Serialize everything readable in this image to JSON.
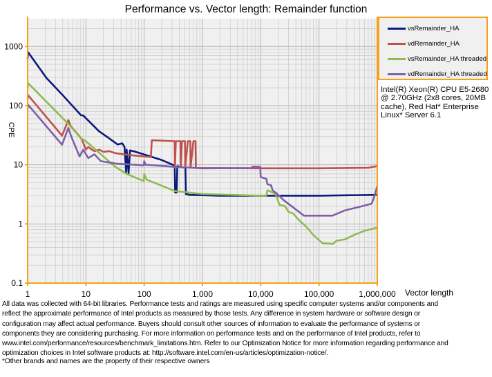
{
  "chart_data": {
    "type": "line",
    "title": "Performance vs. Vector length: Remainder function",
    "xlabel": "Vector length",
    "ylabel": "CPE",
    "xscale": "log",
    "yscale": "log",
    "xlim": [
      1,
      1000000
    ],
    "ylim": [
      0.1,
      2950
    ],
    "grid": true,
    "legend_position": "top-right",
    "x_ticks": [
      1,
      10,
      100,
      1000,
      10000,
      100000,
      1000000
    ],
    "x_tick_labels": [
      "1",
      "10",
      "100",
      "1,000",
      "10,000",
      "100,000",
      "1,000,000"
    ],
    "y_ticks": [
      0.1,
      1,
      10,
      100,
      1000
    ],
    "y_tick_labels": [
      "0.1",
      "1",
      "10",
      "100",
      "1000"
    ],
    "series": [
      {
        "name": "vsRemainder_HA",
        "color": "#0a1a7a",
        "points": [
          [
            1,
            620
          ],
          [
            1.02,
            800
          ],
          [
            2.1,
            293
          ],
          [
            4,
            150
          ],
          [
            8.2,
            69
          ],
          [
            9,
            68
          ],
          [
            16.7,
            37
          ],
          [
            25,
            28
          ],
          [
            35,
            22
          ],
          [
            42,
            23
          ],
          [
            46,
            20
          ],
          [
            49,
            7.4
          ],
          [
            50,
            18
          ],
          [
            54,
            7.2
          ],
          [
            57,
            17.5
          ],
          [
            65,
            17
          ],
          [
            98,
            15
          ],
          [
            200,
            12
          ],
          [
            334,
            9.7
          ],
          [
            340,
            3.4
          ],
          [
            360,
            3.4
          ],
          [
            370,
            9.5
          ],
          [
            450,
            9
          ],
          [
            510,
            9
          ],
          [
            520,
            3.2
          ],
          [
            600,
            3.1
          ],
          [
            2000,
            3.0
          ],
          [
            10000,
            3.0
          ],
          [
            100000,
            3.0
          ],
          [
            1000000,
            3.1
          ]
        ]
      },
      {
        "name": "vdRemainder_HA",
        "color": "#c0504d",
        "points": [
          [
            1,
            130
          ],
          [
            1.02,
            150
          ],
          [
            3.9,
            31
          ],
          [
            5,
            57
          ],
          [
            5.5,
            45
          ],
          [
            7.4,
            32
          ],
          [
            8.5,
            27
          ],
          [
            10,
            18
          ],
          [
            11,
            20
          ],
          [
            12.7,
            18
          ],
          [
            14,
            17
          ],
          [
            17,
            18
          ],
          [
            20,
            16.5
          ],
          [
            25,
            17
          ],
          [
            32,
            15.7
          ],
          [
            60,
            14.5
          ],
          [
            130,
            13.5
          ],
          [
            135,
            26
          ],
          [
            334,
            25
          ],
          [
            336,
            9
          ],
          [
            350,
            25
          ],
          [
            420,
            25
          ],
          [
            425,
            9
          ],
          [
            445,
            25
          ],
          [
            500,
            25
          ],
          [
            505,
            9
          ],
          [
            560,
            25
          ],
          [
            620,
            25
          ],
          [
            625,
            9
          ],
          [
            700,
            25
          ],
          [
            760,
            25
          ],
          [
            770,
            8.8
          ],
          [
            2000,
            8.8
          ],
          [
            10000,
            8.7
          ],
          [
            100000,
            8.7
          ],
          [
            700000,
            8.9
          ],
          [
            1000000,
            9.5
          ]
        ]
      },
      {
        "name": "vsRemainder_HA threaded",
        "color": "#8dbb4f",
        "points": [
          [
            1,
            200
          ],
          [
            1.02,
            240
          ],
          [
            5.1,
            48
          ],
          [
            8.2,
            28
          ],
          [
            10,
            25
          ],
          [
            32,
            9.2
          ],
          [
            50,
            7
          ],
          [
            99,
            5.3
          ],
          [
            100,
            7
          ],
          [
            110,
            5.6
          ],
          [
            335,
            3.6
          ],
          [
            1000,
            3.2
          ],
          [
            10000,
            3.0
          ],
          [
            12500,
            3.0
          ],
          [
            13000,
            3.7
          ],
          [
            14000,
            3.6
          ],
          [
            18000,
            3.2
          ],
          [
            21000,
            2.1
          ],
          [
            26000,
            2.0
          ],
          [
            30000,
            1.6
          ],
          [
            36000,
            1.5
          ],
          [
            46000,
            1.14
          ],
          [
            60000,
            0.9
          ],
          [
            80000,
            0.65
          ],
          [
            115000,
            0.47
          ],
          [
            174000,
            0.46
          ],
          [
            200000,
            0.52
          ],
          [
            280000,
            0.55
          ],
          [
            400000,
            0.65
          ],
          [
            590000,
            0.76
          ],
          [
            1000000,
            0.87
          ]
        ]
      },
      {
        "name": "vdRemainder_HA threaded",
        "color": "#7f5fa8",
        "points": [
          [
            1,
            90
          ],
          [
            1.02,
            103
          ],
          [
            3.9,
            21.8
          ],
          [
            5,
            42
          ],
          [
            5.6,
            30
          ],
          [
            7.8,
            13.8
          ],
          [
            9,
            18
          ],
          [
            11,
            13
          ],
          [
            14,
            15
          ],
          [
            18,
            11.5
          ],
          [
            32,
            10.5
          ],
          [
            99,
            9.8
          ],
          [
            100,
            11.5
          ],
          [
            105,
            10
          ],
          [
            300,
            9.3
          ],
          [
            1000,
            8.7
          ],
          [
            7000,
            8.8
          ],
          [
            7200,
            9.3
          ],
          [
            9800,
            9.2
          ],
          [
            10000,
            6.2
          ],
          [
            12500,
            5.8
          ],
          [
            13000,
            4.7
          ],
          [
            15000,
            4.5
          ],
          [
            16000,
            3.7
          ],
          [
            18600,
            3.3
          ],
          [
            25000,
            2.5
          ],
          [
            55000,
            1.38
          ],
          [
            170000,
            1.38
          ],
          [
            280000,
            1.7
          ],
          [
            500000,
            1.95
          ],
          [
            800000,
            2.2
          ],
          [
            900000,
            3.0
          ],
          [
            1000000,
            4.4
          ]
        ]
      }
    ]
  },
  "legend": [
    "vsRemainder_HA",
    "vdRemainder_HA",
    "vsRemainder_HA threaded",
    "vdRemainder_HA threaded"
  ],
  "system_note": "Intel(R) Xeon(R) CPU E5-2680 @ 2.70GHz (2x8 cores, 20MB cache), Red Hat* Enterprise Linux* Server 6.1",
  "disclaimer_lines": [
    "All data was collected with 64-bit libraries. Performance tests and ratings are measured using specific computer systems and/or components and",
    "reflect the approximate performance of Intel products as measured by those tests. Any difference in system hardware or software design or",
    "configuration may affect actual performance. Buyers should consult other sources of information to evaluate the performance of systems or",
    "components they are considering purchasing. For more information on performance tests and on the performance of Intel products, refer to",
    "www.intel.com/performance/resources/benchmark_limitations.htm.  Refer to our Optimization Notice for more information regarding performance and",
    "optimization choices in Intel software products at: http://software.intel.com/en-us/articles/optimization-notice/."
  ],
  "footnote": "*Other brands and names are the property of their respective owners",
  "colors": {
    "axis": "#f7a11a",
    "plot_bg": "#f0f0f0",
    "grid": "#c8c8c8"
  }
}
